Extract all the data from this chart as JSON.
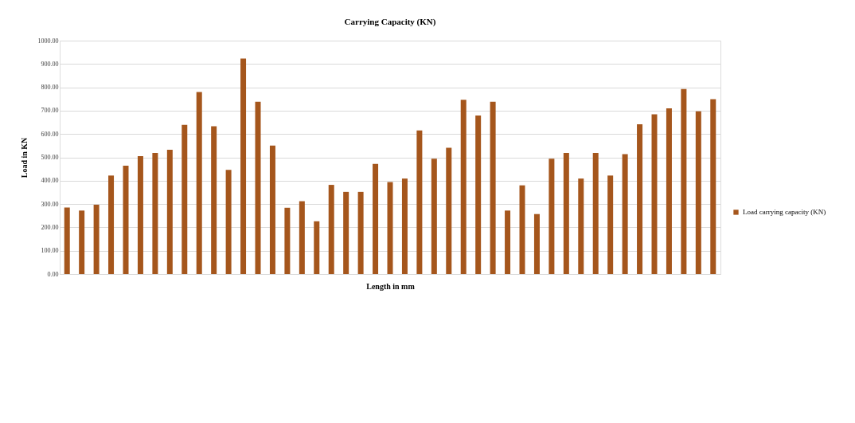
{
  "chart_data": {
    "type": "bar",
    "title": "Carrying Capacity (KN)",
    "xlabel": "Length in mm",
    "ylabel": "Load in KN",
    "categories": [
      null,
      null,
      null,
      null,
      null,
      null,
      null,
      null,
      null,
      null,
      null,
      null,
      null,
      null,
      null,
      null,
      null,
      null,
      null,
      null,
      null,
      null,
      null,
      null,
      null,
      null,
      null,
      null,
      null,
      null,
      null,
      null,
      null,
      null,
      null,
      null,
      null,
      null,
      null,
      null,
      null,
      null,
      null,
      null,
      null
    ],
    "series": [
      {
        "name": "Load carrying capacity (KN)",
        "color": "#a5561c",
        "values": [
          285,
          272,
          297,
          422,
          464,
          505,
          519,
          532,
          639,
          780,
          633,
          446,
          923,
          738,
          550,
          284,
          312,
          226,
          382,
          352,
          352,
          472,
          394,
          409,
          615,
          494,
          541,
          747,
          679,
          738,
          272,
          380,
          257,
          494,
          519,
          409,
          519,
          422,
          514,
          642,
          684,
          710,
          793,
          697,
          749
        ]
      }
    ],
    "ylim": [
      0,
      1000
    ],
    "yticks": [
      {
        "value": 0,
        "label": "0.00"
      },
      {
        "value": 100,
        "label": "100.00"
      },
      {
        "value": 200,
        "label": "200.00"
      },
      {
        "value": 300,
        "label": "300.00"
      },
      {
        "value": 400,
        "label": "400.00"
      },
      {
        "value": 500,
        "label": "500.00"
      },
      {
        "value": 600,
        "label": "600.00"
      },
      {
        "value": 700,
        "label": "700.00"
      },
      {
        "value": 800,
        "label": "800.00"
      },
      {
        "value": 900,
        "label": "900.00"
      },
      {
        "value": 1000,
        "label": "1000.00"
      }
    ],
    "grid": "y",
    "legend": "right"
  }
}
